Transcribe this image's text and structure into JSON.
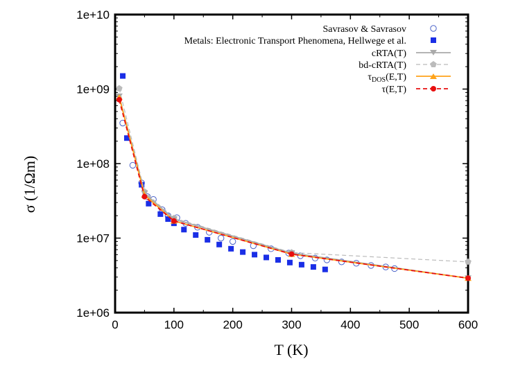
{
  "chart_data": {
    "type": "scatter",
    "title": "",
    "xlabel": "T (K)",
    "ylabel": "σ (1/Ωm)",
    "xlim": [
      0,
      600
    ],
    "ylim": [
      1000000,
      10000000000
    ],
    "yscale": "log",
    "grid": false,
    "legend_position": "top-right",
    "x_tick_labels": [
      "0",
      "100",
      "200",
      "300",
      "400",
      "500",
      "600"
    ],
    "x_ticks": [
      0,
      100,
      200,
      300,
      400,
      500,
      600
    ],
    "y_tick_labels": [
      "1e+06",
      "1e+07",
      "1e+08",
      "1e+09",
      "1e+10"
    ],
    "y_ticks": [
      1000000,
      10000000,
      100000000,
      1000000000,
      10000000000
    ],
    "series": [
      {
        "name": "Savrasov & Savrasov",
        "style": "open-circle",
        "color": "#4a62c8",
        "x": [
          13,
          30,
          45,
          55,
          65,
          80,
          90,
          105,
          120,
          140,
          160,
          180,
          200,
          235,
          265,
          295,
          315,
          340,
          360,
          385,
          410,
          435,
          460,
          475
        ],
        "y": [
          350000000,
          95000000,
          55000000,
          36000000,
          33000000,
          24000000,
          20000000,
          18800000,
          15800000,
          14000000,
          12000000,
          10000000,
          9000000,
          7900000,
          7200000,
          6300000,
          5800000,
          5400000,
          5100000,
          4800000,
          4600000,
          4300000,
          4100000,
          3900000
        ]
      },
      {
        "name": "Metals: Electronic Transport Phenomena, Hellwege et al.",
        "style": "filled-square",
        "color": "#1a2ee6",
        "x": [
          13,
          20,
          45,
          57,
          77,
          90,
          100,
          117,
          137,
          157,
          177,
          197,
          217,
          237,
          257,
          277,
          297,
          317,
          337,
          357
        ],
        "y": [
          1500000000,
          220000000,
          52000000,
          29000000,
          21000000,
          18000000,
          15800000,
          13000000,
          11000000,
          9500000,
          8200000,
          7200000,
          6500000,
          6000000,
          5500000,
          5100000,
          4700000,
          4400000,
          4100000,
          3800000
        ]
      },
      {
        "name": "cRTA(T)",
        "style": "line-triangle-down",
        "color": "#aaaaaa",
        "x": [
          7,
          50,
          100,
          300,
          600
        ],
        "y": [
          800000000,
          40000000,
          18000000,
          6300000,
          2900000
        ]
      },
      {
        "name": "bd-cRTA(T)",
        "style": "dashed-pentagon",
        "color": "#bbbbbb",
        "x": [
          7,
          50,
          100,
          300,
          600
        ],
        "y": [
          1020000000,
          42000000,
          18500000,
          6400000,
          4800000
        ]
      },
      {
        "name": "τDOS(E,T)",
        "style": "line-triangle-up",
        "color": "#ffa31a",
        "x": [
          7,
          50,
          100,
          300,
          600
        ],
        "y": [
          780000000,
          38000000,
          17000000,
          6100000,
          2900000
        ]
      },
      {
        "name": "τ(E,T)",
        "style": "dashed-circle",
        "color": "#e80f0f",
        "x": [
          7,
          50,
          100,
          300,
          600
        ],
        "y": [
          720000000,
          36000000,
          17000000,
          6100000,
          2900000
        ]
      }
    ]
  }
}
